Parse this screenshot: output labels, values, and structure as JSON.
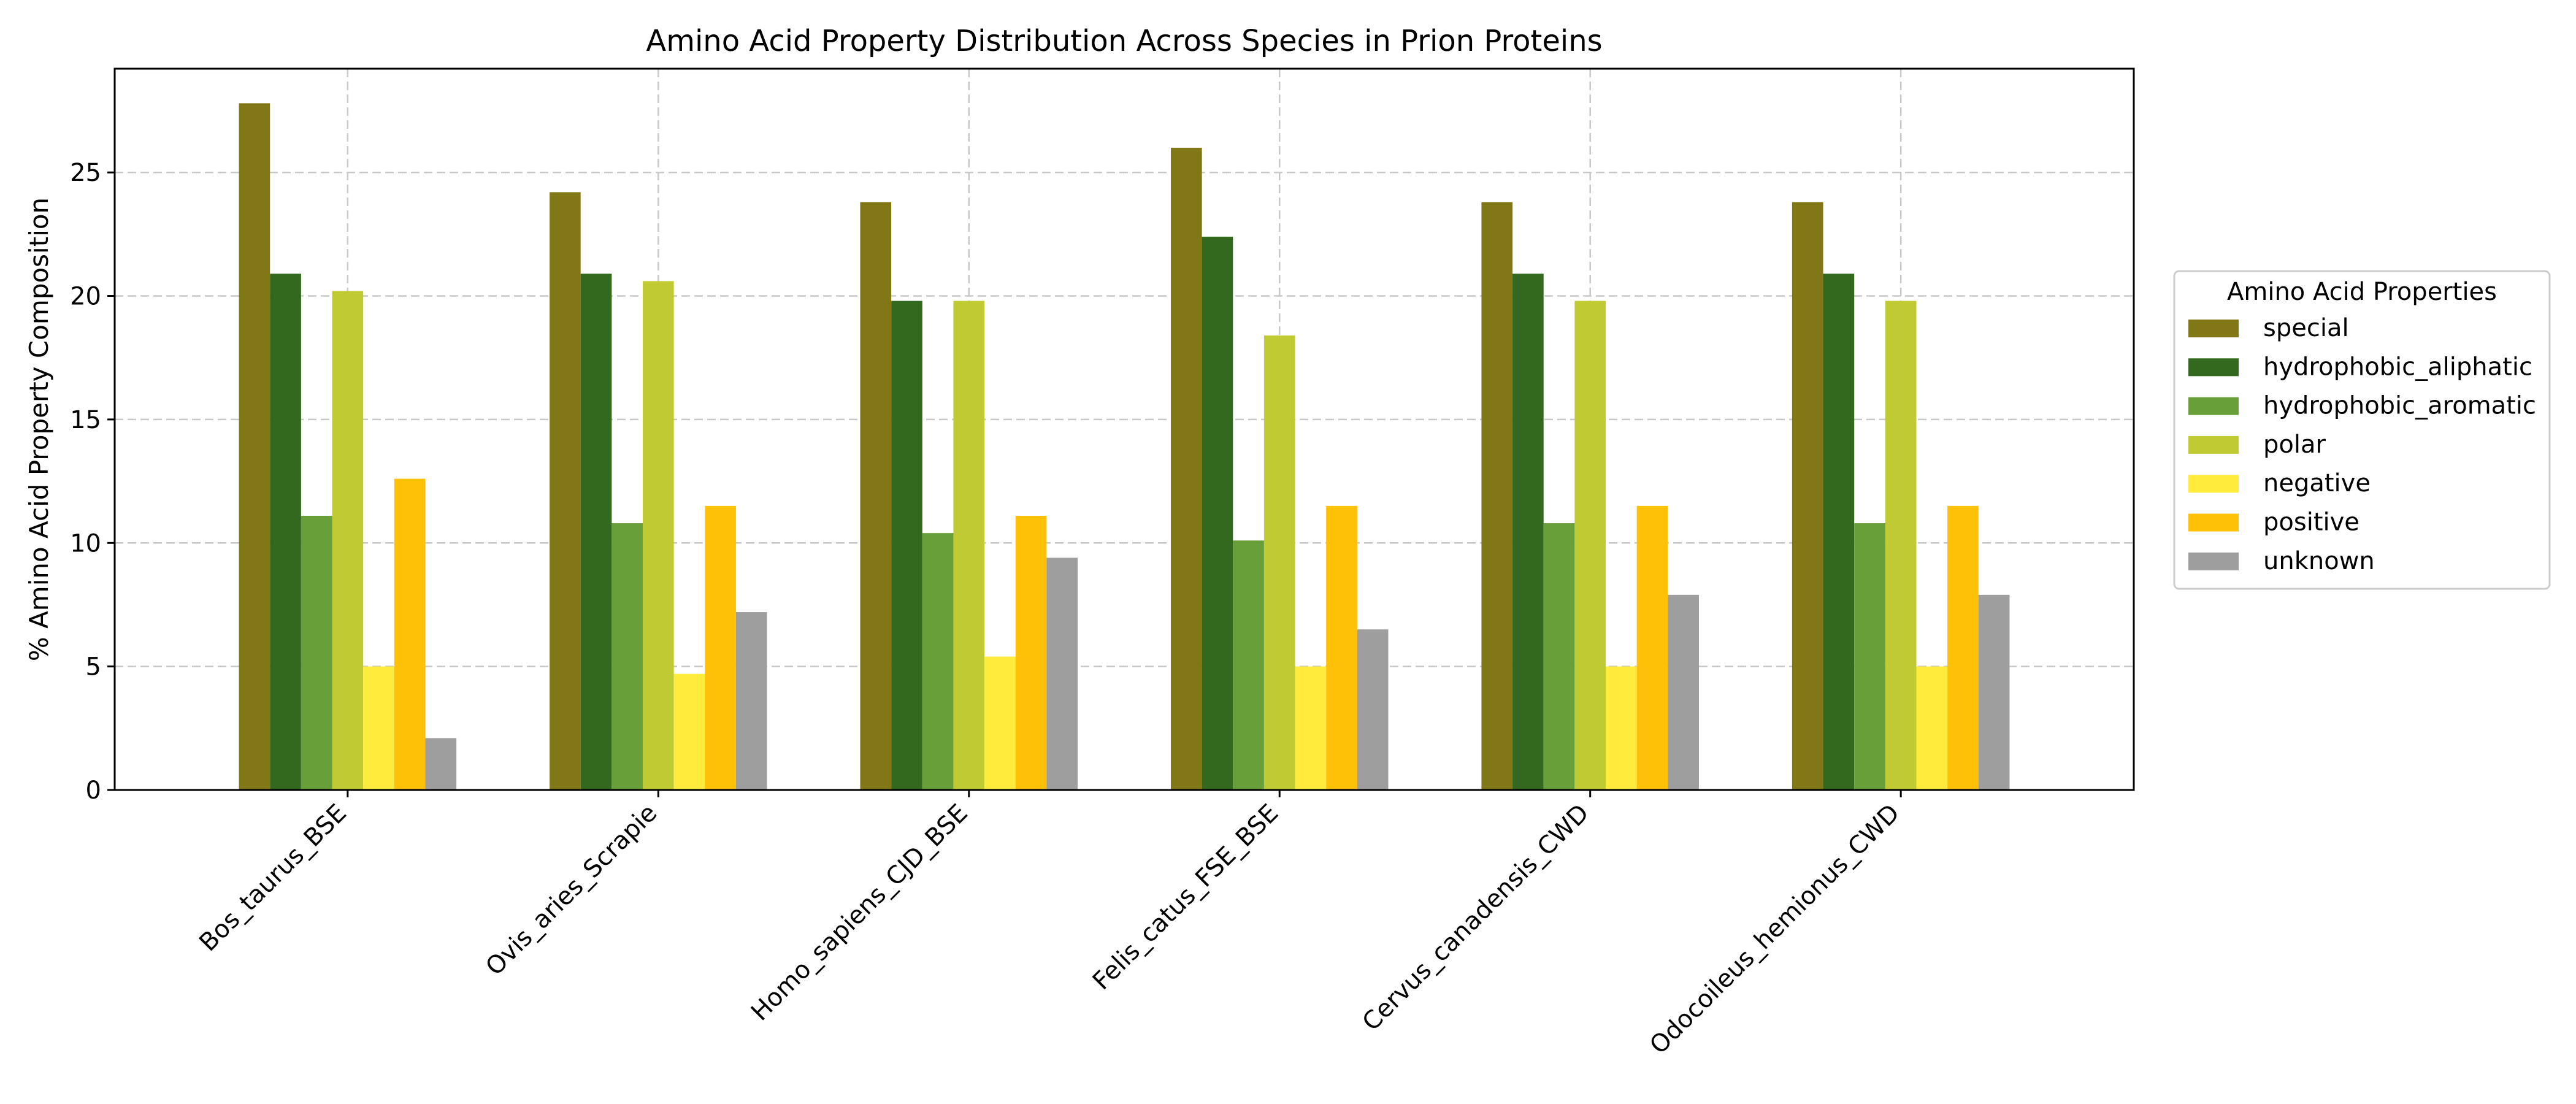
{
  "chart_data": {
    "type": "bar",
    "title": "Amino Acid Property Distribution Across Species in Prion Proteins",
    "xlabel": "",
    "ylabel": "% Amino Acid Property Composition",
    "ylim": [
      0,
      29.2
    ],
    "yticks": [
      0,
      5,
      10,
      15,
      20,
      25
    ],
    "grid": true,
    "legend": {
      "title": "Amino Acid Properties",
      "placement": "outside-right"
    },
    "categories": [
      "Bos_taurus_BSE",
      "Ovis_aries_Scrapie",
      "Homo_sapiens_CJD_BSE",
      "Felis_catus_FSE_BSE",
      "Cervus_canadensis_CWD",
      "Odocoileus_hemionus_CWD"
    ],
    "series": [
      {
        "name": "special",
        "color": "#827717",
        "values": [
          27.8,
          24.2,
          23.8,
          26.0,
          23.8,
          23.8
        ]
      },
      {
        "name": "hydrophobic_aliphatic",
        "color": "#33691e",
        "values": [
          20.9,
          20.9,
          19.8,
          22.4,
          20.9,
          20.9
        ]
      },
      {
        "name": "hydrophobic_aromatic",
        "color": "#689f38",
        "values": [
          11.1,
          10.8,
          10.4,
          10.1,
          10.8,
          10.8
        ]
      },
      {
        "name": "polar",
        "color": "#c0ca33",
        "values": [
          20.2,
          20.6,
          19.8,
          18.4,
          19.8,
          19.8
        ]
      },
      {
        "name": "negative",
        "color": "#ffeb3b",
        "values": [
          5.0,
          4.7,
          5.4,
          5.0,
          5.0,
          5.0
        ]
      },
      {
        "name": "positive",
        "color": "#ffc107",
        "values": [
          12.6,
          11.5,
          11.1,
          11.5,
          11.5,
          11.5
        ]
      },
      {
        "name": "unknown",
        "color": "#9e9e9e",
        "values": [
          2.1,
          7.2,
          9.4,
          6.5,
          7.9,
          7.9
        ]
      }
    ]
  }
}
